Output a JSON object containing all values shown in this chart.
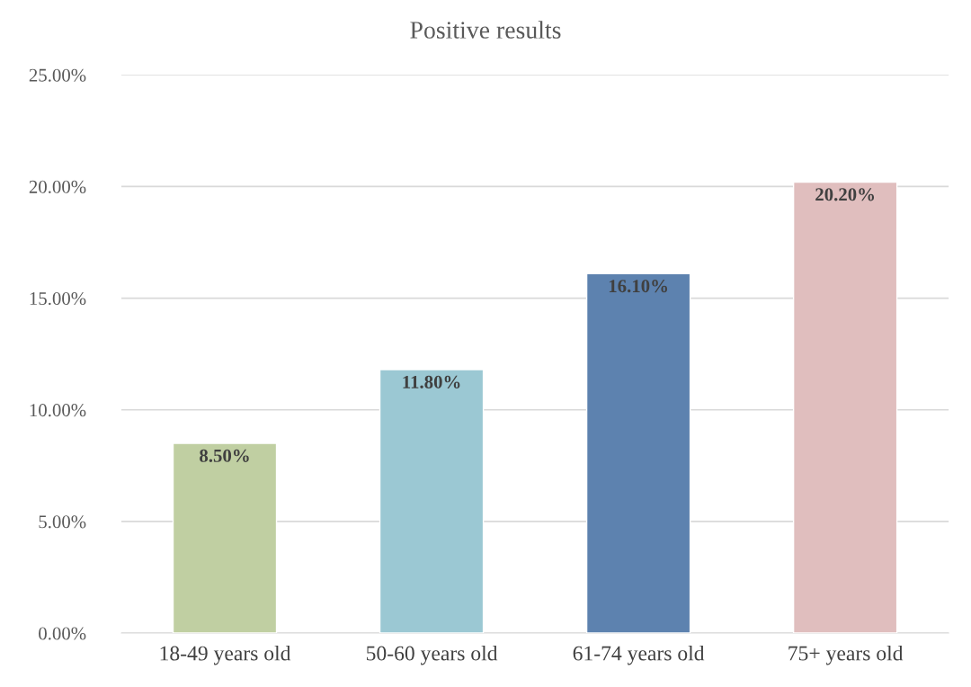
{
  "chart_data": {
    "type": "bar",
    "title": "Positive results",
    "categories": [
      "18-49 years old",
      "50-60 years old",
      "61-74 years old",
      "75+ years old"
    ],
    "values": [
      8.5,
      11.8,
      16.1,
      20.2
    ],
    "colors": [
      "#c3d69b",
      "#92cddc",
      "#4f81bd",
      "#e6b9b8"
    ],
    "value_labels": [
      "8.50%",
      "11.80%",
      "16.10%",
      "20.20%"
    ],
    "ylim": [
      0,
      25
    ],
    "yticks": [
      {
        "value": 0,
        "label": "0.00%"
      },
      {
        "value": 5,
        "label": "5.00%"
      },
      {
        "value": 10,
        "label": "10.00%"
      },
      {
        "value": 15,
        "label": "15.00%"
      },
      {
        "value": 20,
        "label": "20.00%"
      },
      {
        "value": 25,
        "label": "25.00%"
      }
    ],
    "grid": "y",
    "legend": false
  }
}
